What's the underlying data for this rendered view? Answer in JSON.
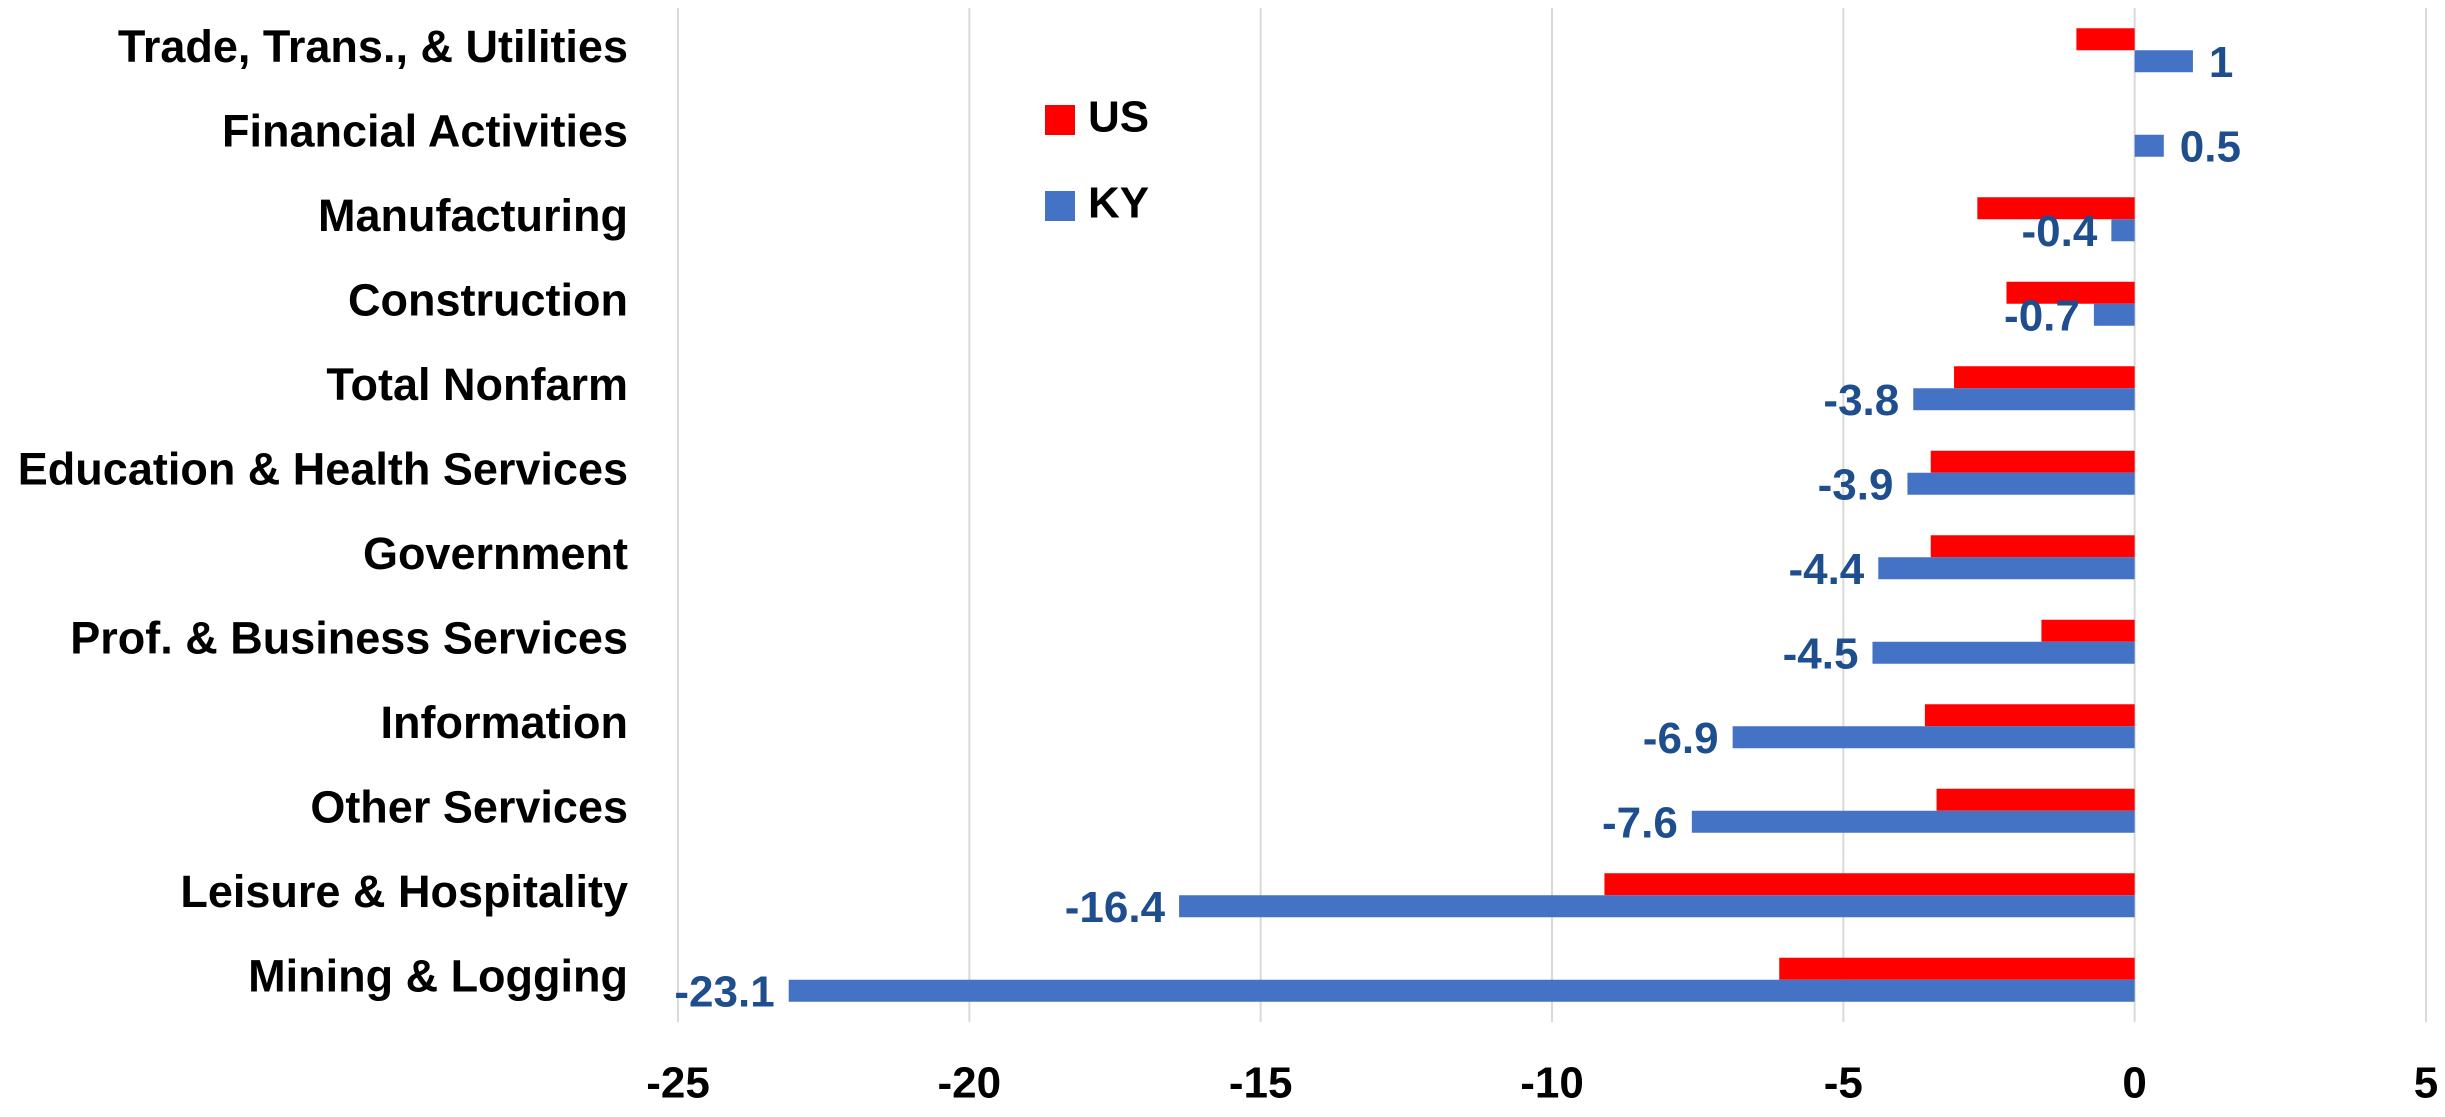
{
  "chart_data": {
    "type": "hbar",
    "categories": [
      "Trade, Trans., & Utilities",
      "Financial Activities",
      "Manufacturing",
      "Construction",
      "Total Nonfarm",
      "Education & Health Services",
      "Government",
      "Prof. & Business Services",
      "Information",
      "Other Services",
      "Leisure & Hospitality",
      "Mining & Logging"
    ],
    "series": [
      {
        "name": "US",
        "color": "#ff0000",
        "values": [
          -1.0,
          0,
          -2.7,
          -2.2,
          -3.1,
          -3.5,
          -3.5,
          -1.6,
          -3.6,
          -3.4,
          -9.1,
          -6.1
        ]
      },
      {
        "name": "KY",
        "color": "#4472c4",
        "values": [
          1,
          0.5,
          -0.4,
          -0.7,
          -3.8,
          -3.9,
          -4.4,
          -4.5,
          -6.9,
          -7.6,
          -16.4,
          -23.1
        ]
      }
    ],
    "xlim": [
      -25,
      5
    ],
    "xticks": [
      -25,
      -20,
      -15,
      -10,
      -5,
      0,
      5
    ],
    "grid": true,
    "legend": "top-center"
  }
}
